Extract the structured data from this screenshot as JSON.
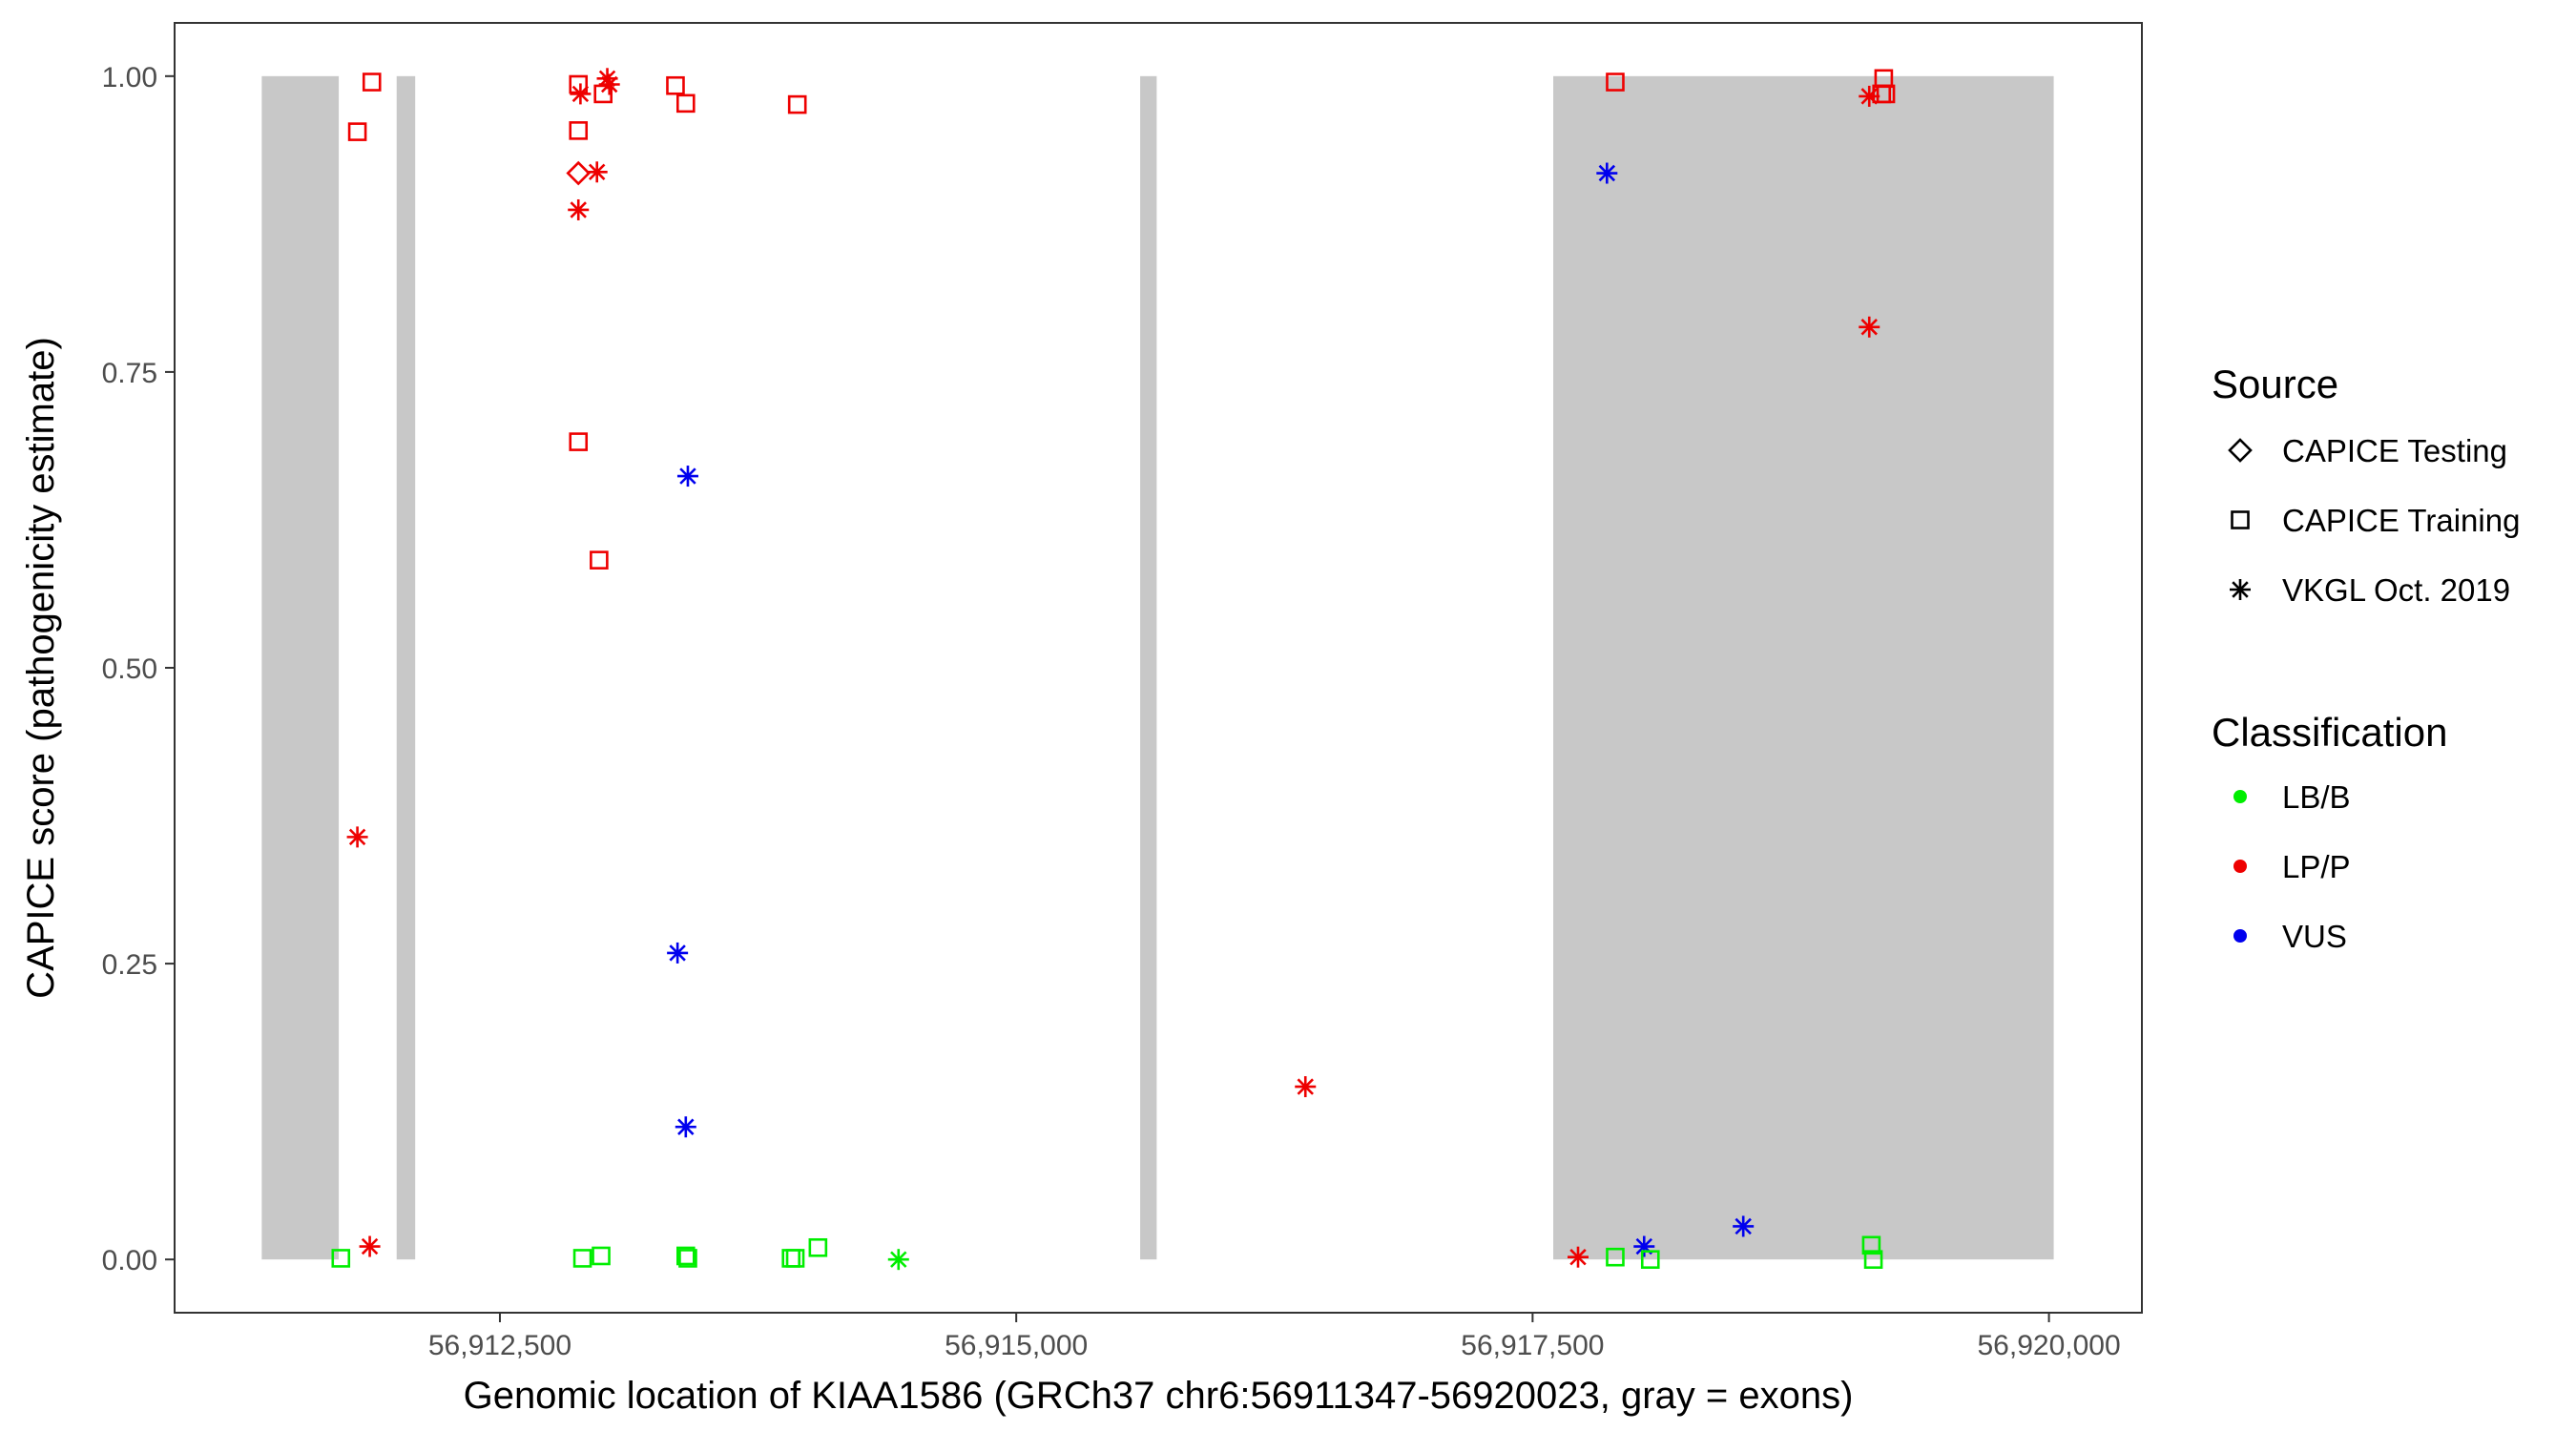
{
  "chart_data": {
    "type": "scatter",
    "title": "",
    "xlabel": "Genomic location of KIAA1586 (GRCh37 chr6:56911347-56920023, gray = exons)",
    "ylabel": "CAPICE score (pathogenicity estimate)",
    "xlim": [
      56910925,
      56920450
    ],
    "ylim": [
      -0.045,
      1.045
    ],
    "x_ticks": [
      56912500,
      56915000,
      56917500,
      56920000
    ],
    "x_tick_labels": [
      "56,912,500",
      "56,915,000",
      "56,917,500",
      "56,920,000"
    ],
    "y_ticks": [
      0,
      0.25,
      0.5,
      0.75,
      1
    ],
    "y_tick_labels": [
      "0.00",
      "0.25",
      "0.50",
      "0.75",
      "1.00"
    ],
    "grid": false,
    "legend_position": "right",
    "exons": [
      {
        "start": 56911347,
        "end": 56911720
      },
      {
        "start": 56912000,
        "end": 56912090
      },
      {
        "start": 56915600,
        "end": 56915680
      },
      {
        "start": 56917600,
        "end": 56920023
      }
    ],
    "legend": {
      "source": {
        "title": "Source",
        "items": [
          {
            "label": "CAPICE Testing",
            "shape": "diamond"
          },
          {
            "label": "CAPICE Training",
            "shape": "square"
          },
          {
            "label": "VKGL Oct. 2019",
            "shape": "asterisk"
          }
        ]
      },
      "classification": {
        "title": "Classification",
        "items": [
          {
            "label": "LB/B",
            "color": "#00ee00"
          },
          {
            "label": "LP/P",
            "color": "#ee0000"
          },
          {
            "label": "VUS",
            "color": "#0000ee"
          }
        ]
      }
    },
    "series": [
      {
        "source": "CAPICE Training",
        "classification": "LP/P",
        "x": 56911880,
        "y": 0.995
      },
      {
        "source": "CAPICE Training",
        "classification": "LP/P",
        "x": 56911810,
        "y": 0.953
      },
      {
        "source": "CAPICE Training",
        "classification": "LP/P",
        "x": 56912880,
        "y": 0.993
      },
      {
        "source": "CAPICE Training",
        "classification": "LP/P",
        "x": 56912880,
        "y": 0.954
      },
      {
        "source": "CAPICE Training",
        "classification": "LP/P",
        "x": 56913000,
        "y": 0.985
      },
      {
        "source": "CAPICE Training",
        "classification": "LP/P",
        "x": 56913350,
        "y": 0.992
      },
      {
        "source": "CAPICE Training",
        "classification": "LP/P",
        "x": 56913400,
        "y": 0.977
      },
      {
        "source": "CAPICE Training",
        "classification": "LP/P",
        "x": 56913940,
        "y": 0.976
      },
      {
        "source": "CAPICE Training",
        "classification": "LP/P",
        "x": 56912880,
        "y": 0.691
      },
      {
        "source": "CAPICE Training",
        "classification": "LP/P",
        "x": 56912980,
        "y": 0.591
      },
      {
        "source": "CAPICE Training",
        "classification": "LP/P",
        "x": 56917900,
        "y": 0.995
      },
      {
        "source": "CAPICE Training",
        "classification": "LP/P",
        "x": 56919200,
        "y": 0.998
      },
      {
        "source": "CAPICE Training",
        "classification": "LP/P",
        "x": 56919190,
        "y": 0.985
      },
      {
        "source": "CAPICE Training",
        "classification": "LP/P",
        "x": 56919210,
        "y": 0.985
      },
      {
        "source": "CAPICE Testing",
        "classification": "LP/P",
        "x": 56912880,
        "y": 0.918
      },
      {
        "source": "VKGL Oct. 2019",
        "classification": "LP/P",
        "x": 56912890,
        "y": 0.985
      },
      {
        "source": "VKGL Oct. 2019",
        "classification": "LP/P",
        "x": 56913020,
        "y": 0.998
      },
      {
        "source": "VKGL Oct. 2019",
        "classification": "LP/P",
        "x": 56913030,
        "y": 0.993
      },
      {
        "source": "VKGL Oct. 2019",
        "classification": "LP/P",
        "x": 56912970,
        "y": 0.919
      },
      {
        "source": "VKGL Oct. 2019",
        "classification": "LP/P",
        "x": 56912880,
        "y": 0.887
      },
      {
        "source": "VKGL Oct. 2019",
        "classification": "LP/P",
        "x": 56911810,
        "y": 0.357
      },
      {
        "source": "VKGL Oct. 2019",
        "classification": "LP/P",
        "x": 56911870,
        "y": 0.011
      },
      {
        "source": "VKGL Oct. 2019",
        "classification": "LP/P",
        "x": 56916400,
        "y": 0.146
      },
      {
        "source": "VKGL Oct. 2019",
        "classification": "LP/P",
        "x": 56917720,
        "y": 0.002
      },
      {
        "source": "VKGL Oct. 2019",
        "classification": "LP/P",
        "x": 56919130,
        "y": 0.983
      },
      {
        "source": "VKGL Oct. 2019",
        "classification": "LP/P",
        "x": 56919130,
        "y": 0.788
      },
      {
        "source": "VKGL Oct. 2019",
        "classification": "VUS",
        "x": 56913410,
        "y": 0.662
      },
      {
        "source": "VKGL Oct. 2019",
        "classification": "VUS",
        "x": 56913360,
        "y": 0.259
      },
      {
        "source": "VKGL Oct. 2019",
        "classification": "VUS",
        "x": 56913400,
        "y": 0.112
      },
      {
        "source": "VKGL Oct. 2019",
        "classification": "VUS",
        "x": 56917860,
        "y": 0.918
      },
      {
        "source": "VKGL Oct. 2019",
        "classification": "VUS",
        "x": 56918040,
        "y": 0.011
      },
      {
        "source": "VKGL Oct. 2019",
        "classification": "VUS",
        "x": 56918520,
        "y": 0.028
      },
      {
        "source": "VKGL Oct. 2019",
        "classification": "LB/B",
        "x": 56914430,
        "y": 0.0
      },
      {
        "source": "CAPICE Training",
        "classification": "LB/B",
        "x": 56911730,
        "y": 0.001
      },
      {
        "source": "CAPICE Training",
        "classification": "LB/B",
        "x": 56912900,
        "y": 0.001
      },
      {
        "source": "CAPICE Training",
        "classification": "LB/B",
        "x": 56912990,
        "y": 0.003
      },
      {
        "source": "CAPICE Training",
        "classification": "LB/B",
        "x": 56913400,
        "y": 0.003
      },
      {
        "source": "CAPICE Training",
        "classification": "LB/B",
        "x": 56913410,
        "y": 0.001
      },
      {
        "source": "CAPICE Training",
        "classification": "LB/B",
        "x": 56913910,
        "y": 0.001
      },
      {
        "source": "CAPICE Training",
        "classification": "LB/B",
        "x": 56913930,
        "y": 0.001
      },
      {
        "source": "CAPICE Training",
        "classification": "LB/B",
        "x": 56914040,
        "y": 0.01
      },
      {
        "source": "CAPICE Training",
        "classification": "LB/B",
        "x": 56917900,
        "y": 0.002
      },
      {
        "source": "CAPICE Training",
        "classification": "LB/B",
        "x": 56918070,
        "y": 0.0
      },
      {
        "source": "CAPICE Training",
        "classification": "LB/B",
        "x": 56919140,
        "y": 0.012
      },
      {
        "source": "CAPICE Training",
        "classification": "LB/B",
        "x": 56919150,
        "y": 0.0
      }
    ]
  }
}
